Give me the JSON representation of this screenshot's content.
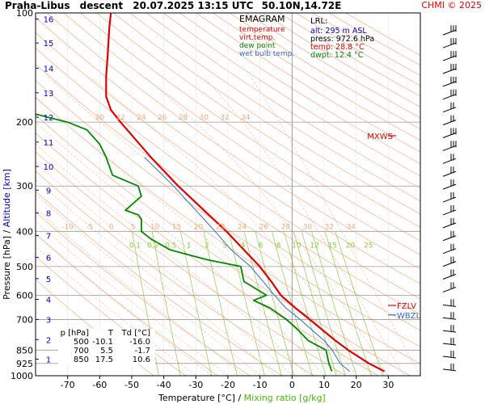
{
  "header": {
    "station": "Praha-Libus",
    "mode": "descent",
    "datetime": "20.07.2025 13:15 UTC",
    "coords": "50.10N,14.72E",
    "copyright": "CHMI © 2025"
  },
  "legend": {
    "title": "EMAGRAM",
    "temperature": "temperature",
    "virt_temp": "virt.temp.",
    "dew_point": "dew point",
    "wet_bulb": "wet bulb temp."
  },
  "lrl": {
    "title": "LRL:",
    "alt": "alt: 295 m ASL",
    "press": "press: 972.6 hPa",
    "temp": "temp: 28.8 °C",
    "dwpt": "dwpt: 12.4 °C"
  },
  "level_table": {
    "headers": [
      "p [hPa]",
      "T",
      "Td [°C]"
    ],
    "rows": [
      [
        "500",
        "-10.1",
        "-16.0"
      ],
      [
        "700",
        "5.5",
        "-1.7"
      ],
      [
        "850",
        "17.5",
        "10.6"
      ]
    ]
  },
  "markers": {
    "mxws": "MXWS",
    "fzlv": "FZLV",
    "wbzl": "WBZL"
  },
  "axes": {
    "x_label_temp": "Temperature [°C]",
    "x_label_sep": "/",
    "x_label_mix": "Mixing ratio [g/kg]",
    "y_label_pressure": "Pressure [hPa]",
    "y_label_sep": "/",
    "y_label_alt": "Altitude [km]"
  },
  "chart_data": {
    "type": "line",
    "x_ticks": [
      -70,
      -60,
      -50,
      -40,
      -30,
      -20,
      -10,
      0,
      10,
      20,
      30
    ],
    "xlim": [
      -80,
      40
    ],
    "y_scale": "log",
    "ylim": [
      1000,
      100
    ],
    "pressure_ticks": [
      100,
      200,
      300,
      400,
      500,
      600,
      700,
      850,
      925,
      1000
    ],
    "altitude_ticks": [
      1,
      2,
      3,
      4,
      5,
      6,
      7,
      8,
      9,
      10,
      11,
      12,
      13,
      14,
      15,
      16
    ],
    "altitude_pressure": [
      900,
      795,
      700,
      616,
      540,
      472,
      411,
      356,
      308,
      265,
      227,
      194,
      166,
      142,
      121,
      104
    ],
    "dry_adiabat_labels": [
      "20",
      "22",
      "24",
      "26",
      "28",
      "30",
      "32",
      "34"
    ],
    "moist_adiabat_labels": [
      "-10",
      "-5",
      "0",
      "5",
      "10",
      "15",
      "20",
      "22",
      "24",
      "26",
      "28",
      "30",
      "32",
      "34"
    ],
    "mixing_ratio_labels": [
      "0.1",
      "0.2",
      "0.5",
      "1",
      "2",
      "3",
      "4",
      "6",
      "8",
      "10",
      "12",
      "15",
      "20",
      "25"
    ],
    "series": [
      {
        "name": "temperature",
        "color": "#e00000",
        "p": [
          972.6,
          925,
          850,
          800,
          700,
          650,
          600,
          550,
          500,
          450,
          400,
          350,
          300,
          250,
          200,
          185,
          170,
          150,
          130,
          110,
          100
        ],
        "t": [
          28.8,
          24,
          17.5,
          13.5,
          5.5,
          1,
          -3.5,
          -6.5,
          -10.1,
          -15,
          -20.5,
          -27.5,
          -35.5,
          -44,
          -53.5,
          -56.5,
          -58,
          -58,
          -57.5,
          -57,
          -56.5
        ]
      },
      {
        "name": "dew point",
        "color": "#008800",
        "p": [
          972.6,
          925,
          850,
          800,
          750,
          700,
          650,
          620,
          600,
          550,
          500,
          480,
          470,
          450,
          420,
          400,
          370,
          360,
          350,
          320,
          300,
          280,
          250,
          230,
          210,
          200,
          190
        ],
        "t": [
          12.4,
          11.5,
          10.6,
          5,
          2,
          -1.7,
          -7,
          -12,
          -8,
          -15,
          -16,
          -26,
          -30,
          -38,
          -44,
          -47,
          -47,
          -48,
          -52,
          -47,
          -48,
          -56,
          -58,
          -60,
          -64,
          -70,
          -80
        ]
      },
      {
        "name": "wet bulb temp.",
        "color": "#3366cc",
        "p": [
          972.6,
          925,
          850,
          800,
          700,
          650,
          600,
          550,
          500,
          450,
          400,
          350,
          300,
          250
        ],
        "t": [
          18,
          15,
          12.5,
          10,
          2.5,
          -2,
          -5.5,
          -9,
          -13,
          -19,
          -24,
          -30,
          -37,
          -46
        ]
      }
    ],
    "markers": [
      {
        "label": "MXWS",
        "p": 218
      },
      {
        "label": "FZLV",
        "p": 640
      },
      {
        "label": "WBZL",
        "p": 680
      }
    ]
  }
}
